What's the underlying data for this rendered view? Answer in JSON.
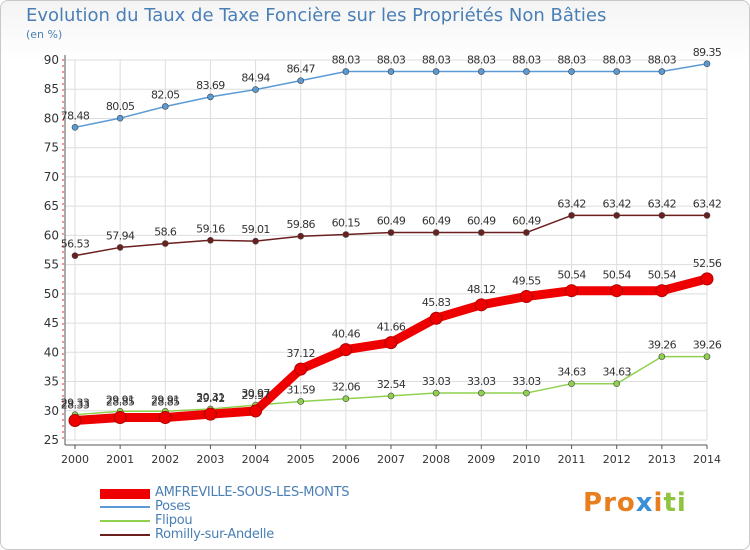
{
  "chart_data": {
    "type": "line",
    "title": "Evolution du Taux de Taxe Foncière sur les Propriétés Non Bâties",
    "ylabel": "(en %)",
    "xlabel": "",
    "ylim": [
      25,
      90
    ],
    "yticks": [
      25,
      30,
      35,
      40,
      45,
      50,
      55,
      60,
      65,
      70,
      75,
      80,
      85,
      90
    ],
    "categories": [
      "2000",
      "2001",
      "2002",
      "2003",
      "2004",
      "2005",
      "2006",
      "2007",
      "2008",
      "2009",
      "2010",
      "2011",
      "2012",
      "2013",
      "2014"
    ],
    "series": [
      {
        "name": "AMFREVILLE-SOUS-LES-MONTS",
        "color": "#ee0000",
        "values": [
          28.33,
          28.85,
          28.85,
          29.42,
          29.97,
          37.12,
          40.46,
          41.66,
          45.83,
          48.12,
          49.55,
          50.54,
          50.54,
          50.54,
          52.56
        ],
        "labels": [
          "28.33",
          "28.85",
          "28.85",
          "29.42",
          "29.97",
          "37.12",
          "40.46",
          "41.66",
          "45.83",
          "48.12",
          "49.55",
          "50.54",
          "50.54",
          "50.54",
          "52.56"
        ]
      },
      {
        "name": "Poses",
        "color": "#5b9bd5",
        "values": [
          78.48,
          80.05,
          82.05,
          83.69,
          84.94,
          86.47,
          88.03,
          88.03,
          88.03,
          88.03,
          88.03,
          88.03,
          88.03,
          88.03,
          89.35
        ],
        "labels": [
          "78.48",
          "80.05",
          "82.05",
          "83.69",
          "84.94",
          "86.47",
          "88.03",
          "88.03",
          "88.03",
          "88.03",
          "88.03",
          "88.03",
          "88.03",
          "88.03",
          "89.35"
        ]
      },
      {
        "name": "Flipou",
        "color": "#8fd14f",
        "values": [
          29.33,
          29.91,
          29.91,
          30.31,
          30.97,
          31.59,
          32.06,
          32.54,
          33.03,
          33.03,
          33.03,
          34.63,
          34.63,
          39.26,
          39.26
        ],
        "labels": [
          "29.33",
          "29.91",
          "29.91",
          "30.31",
          "30.97",
          "31.59",
          "32.06",
          "32.54",
          "33.03",
          "33.03",
          "33.03",
          "34.63",
          "34.63",
          "39.26",
          "39.26"
        ]
      },
      {
        "name": "Romilly-sur-Andelle",
        "color": "#6b1f1f",
        "values": [
          56.53,
          57.94,
          58.6,
          59.16,
          59.01,
          59.86,
          60.15,
          60.49,
          60.49,
          60.49,
          60.49,
          63.42,
          63.42,
          63.42,
          63.42
        ],
        "labels": [
          "56.53",
          "57.94",
          "58.6",
          "59.16",
          "59.01",
          "59.86",
          "60.15",
          "60.49",
          "60.49",
          "60.49",
          "60.49",
          "63.42",
          "63.42",
          "63.42",
          "63.42"
        ]
      }
    ]
  },
  "legend": {
    "items": [
      {
        "label": "AMFREVILLE-SOUS-LES-MONTS",
        "color": "#ee0000"
      },
      {
        "label": "Poses",
        "color": "#5b9bd5"
      },
      {
        "label": "Flipou",
        "color": "#8fd14f"
      },
      {
        "label": "Romilly-sur-Andelle",
        "color": "#6b1f1f"
      }
    ]
  },
  "logo": {
    "text": "Proxiti"
  }
}
